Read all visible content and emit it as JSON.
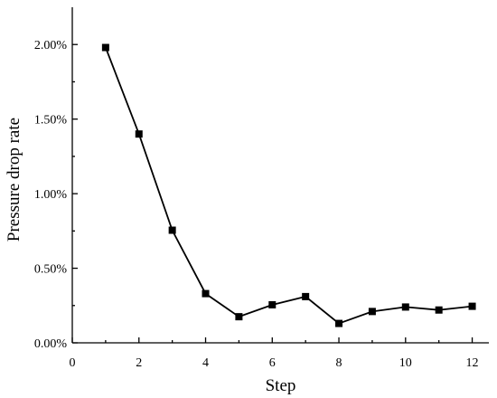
{
  "chart_data": {
    "type": "line",
    "xlabel": "Step",
    "ylabel": "Pressure drop rate",
    "xlim": [
      0,
      12.5
    ],
    "ylim": [
      0,
      2.25
    ],
    "x_ticks": [
      0,
      2,
      4,
      6,
      8,
      10,
      12
    ],
    "x_tick_labels": [
      "0",
      "2",
      "4",
      "6",
      "8",
      "10",
      "12"
    ],
    "y_ticks": [
      0,
      0.5,
      1.0,
      1.5,
      2.0
    ],
    "y_tick_labels": [
      "0.00%",
      "0.50%",
      "1.00%",
      "1.50%",
      "2.00%"
    ],
    "y_unit": "%",
    "grid": false,
    "legend": "none",
    "marker": "square",
    "line_color": "#000000",
    "series": [
      {
        "x": [
          1,
          2,
          3,
          4,
          5,
          6,
          7,
          8,
          9,
          10,
          11,
          12
        ],
        "values": [
          1.98,
          1.4,
          0.755,
          0.33,
          0.175,
          0.255,
          0.31,
          0.13,
          0.21,
          0.24,
          0.22,
          0.245
        ]
      }
    ]
  }
}
